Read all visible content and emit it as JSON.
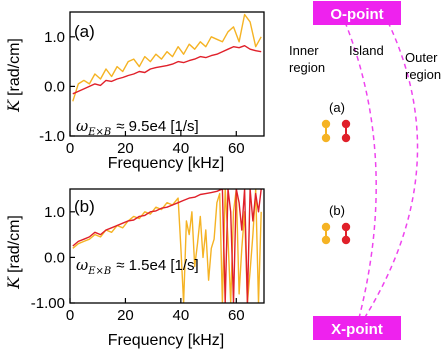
{
  "chart_data": [
    {
      "type": "line",
      "panel_label": "(a)",
      "annotation": "≈ 9.5e4 [1/s]",
      "annotation_symbol": "ω",
      "annotation_subscript": "E×B",
      "xlabel": "Frequency [kHz]",
      "ylabel_symbol": "K",
      "ylabel_unit": "[rad/cm]",
      "xlim": [
        0,
        70
      ],
      "ylim": [
        -1.0,
        1.5
      ],
      "xticks": [
        0,
        20,
        40,
        60
      ],
      "yticks": [
        -1.0,
        0.0,
        1.0
      ],
      "ytick_labels": [
        "-1.0",
        "0.0",
        "1.0"
      ],
      "series": [
        {
          "color": "#f5b324",
          "x": [
            1,
            3,
            5,
            7,
            9,
            11,
            13,
            15,
            17,
            19,
            21,
            23,
            25,
            27,
            29,
            31,
            33,
            35,
            37,
            39,
            41,
            43,
            45,
            47,
            49,
            51,
            53,
            55,
            57,
            59,
            61,
            63,
            65,
            67,
            69
          ],
          "y": [
            -0.3,
            0.05,
            0.12,
            0.05,
            0.25,
            0.15,
            0.35,
            0.2,
            0.4,
            0.3,
            0.5,
            0.55,
            0.4,
            0.6,
            0.5,
            0.65,
            0.55,
            0.7,
            0.6,
            0.8,
            0.65,
            0.85,
            0.75,
            0.9,
            0.8,
            1.0,
            0.95,
            0.9,
            1.1,
            1.2,
            0.9,
            1.45,
            1.3,
            0.8,
            1.0
          ]
        },
        {
          "color": "#e0202a",
          "x": [
            1,
            3,
            5,
            7,
            9,
            11,
            13,
            15,
            17,
            19,
            21,
            23,
            25,
            27,
            29,
            31,
            33,
            35,
            37,
            39,
            41,
            43,
            45,
            47,
            49,
            51,
            53,
            55,
            57,
            59,
            61,
            63,
            65,
            67,
            69
          ],
          "y": [
            -0.15,
            -0.1,
            -0.05,
            0.0,
            0.05,
            0.02,
            0.12,
            0.1,
            0.15,
            0.18,
            0.22,
            0.25,
            0.3,
            0.28,
            0.35,
            0.38,
            0.4,
            0.42,
            0.45,
            0.5,
            0.48,
            0.52,
            0.55,
            0.6,
            0.58,
            0.62,
            0.65,
            0.7,
            0.75,
            0.8,
            0.78,
            0.82,
            0.75,
            0.72,
            0.7
          ]
        }
      ]
    },
    {
      "type": "line",
      "panel_label": "(b)",
      "annotation": "≈ 1.5e4 [1/s]",
      "annotation_symbol": "ω",
      "annotation_subscript": "E×B",
      "xlabel": "Frequency [kHz]",
      "ylabel_symbol": "K",
      "ylabel_unit": "[rad/cm]",
      "xlim": [
        0,
        70
      ],
      "ylim": [
        -1.0,
        1.5
      ],
      "xticks": [
        0,
        20,
        40,
        60
      ],
      "yticks": [
        -1.0,
        0.0,
        1.0
      ],
      "ytick_labels": [
        "-1.00",
        "0.0",
        "1.0"
      ],
      "series": [
        {
          "color": "#f5b324",
          "x": [
            1,
            3,
            5,
            7,
            9,
            11,
            13,
            15,
            17,
            19,
            21,
            23,
            25,
            27,
            29,
            31,
            33,
            35,
            37,
            39,
            40,
            41,
            42,
            43,
            44,
            45,
            46,
            47,
            48,
            49,
            50,
            51,
            52,
            53,
            54,
            55,
            56,
            57,
            58,
            59,
            60,
            61,
            62,
            63,
            64,
            65,
            66,
            67,
            68,
            69
          ],
          "y": [
            0.2,
            0.3,
            0.35,
            0.4,
            0.5,
            0.45,
            0.6,
            0.55,
            0.7,
            0.65,
            0.8,
            0.9,
            0.85,
            1.0,
            0.95,
            1.1,
            1.05,
            1.2,
            1.15,
            1.3,
            0.2,
            -1.0,
            0.8,
            0.5,
            1.0,
            -0.2,
            0.3,
            0.9,
            0.0,
            0.6,
            -0.5,
            0.2,
            0.4,
            1.2,
            1.4,
            -1.0,
            1.5,
            0.4,
            -1.0,
            1.0,
            1.5,
            -0.8,
            0.2,
            1.0,
            -1.0,
            -0.3,
            0.5,
            1.5,
            -1.0,
            1.0
          ]
        },
        {
          "color": "#e0202a",
          "x": [
            1,
            3,
            5,
            7,
            9,
            11,
            13,
            15,
            17,
            19,
            21,
            23,
            25,
            27,
            29,
            31,
            33,
            35,
            37,
            39,
            41,
            43,
            45,
            47,
            49,
            51,
            53,
            55,
            56,
            57,
            58,
            59,
            60,
            61,
            62,
            63,
            64,
            65,
            66,
            67,
            68,
            69
          ],
          "y": [
            0.25,
            0.35,
            0.4,
            0.45,
            0.55,
            0.5,
            0.6,
            0.65,
            0.7,
            0.75,
            0.8,
            0.82,
            0.9,
            0.92,
            1.0,
            1.02,
            1.08,
            1.1,
            1.15,
            1.2,
            1.25,
            1.3,
            1.32,
            1.38,
            1.4,
            1.42,
            1.45,
            1.5,
            -1.0,
            1.5,
            1.0,
            -1.0,
            1.5,
            1.2,
            0.6,
            1.5,
            -1.0,
            1.5,
            0.8,
            1.4,
            1.0,
            1.5
          ]
        }
      ]
    }
  ],
  "schematic": {
    "o_point_label": "O-point",
    "x_point_label": "X-point",
    "inner_region_line1": "Inner",
    "inner_region_line2": "region",
    "island_label": "Island",
    "outer_region_line1": "Outer",
    "outer_region_line2": "region",
    "marker_a_label": "(a)",
    "marker_b_label": "(b)",
    "badge_color": "#ee22ee",
    "dash_color": "#ee44ee",
    "dot_colors": [
      "#f5b324",
      "#e0202a"
    ]
  }
}
